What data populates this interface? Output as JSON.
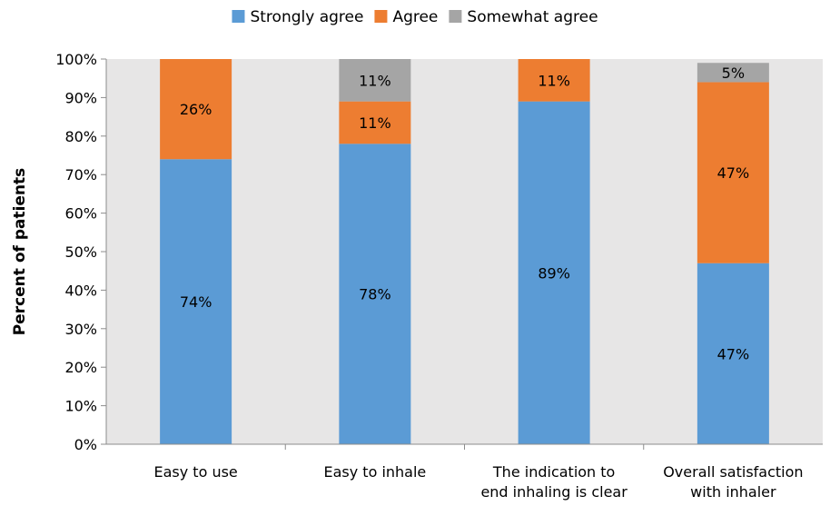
{
  "chart_data": {
    "type": "bar",
    "stacked": true,
    "categories": [
      [
        "Easy to use"
      ],
      [
        "Easy to inhale"
      ],
      [
        "The indication to",
        "end inhaling is clear"
      ],
      [
        "Overall satisfaction",
        "with inhaler"
      ]
    ],
    "series": [
      {
        "name": "Strongly agree",
        "color": "#5B9BD5",
        "values": [
          74,
          78,
          89,
          47
        ],
        "labels": [
          "74%",
          "78%",
          "89%",
          "47%"
        ]
      },
      {
        "name": "Agree",
        "color": "#ED7D31",
        "values": [
          26,
          11,
          11,
          47
        ],
        "labels": [
          "26%",
          "11%",
          "11%",
          "47%"
        ]
      },
      {
        "name": "Somewhat agree",
        "color": "#A5A5A5",
        "values": [
          0,
          11,
          0,
          5
        ],
        "labels": [
          "",
          "11%",
          "",
          "5%"
        ]
      }
    ],
    "ylabel": "Percent of patients",
    "xlabel": "",
    "ylim": [
      0,
      100
    ],
    "yticks": [
      "0%",
      "10%",
      "20%",
      "30%",
      "40%",
      "50%",
      "60%",
      "70%",
      "80%",
      "90%",
      "100%"
    ],
    "plot_background": "#E7E6E6",
    "legend_position": "top"
  }
}
